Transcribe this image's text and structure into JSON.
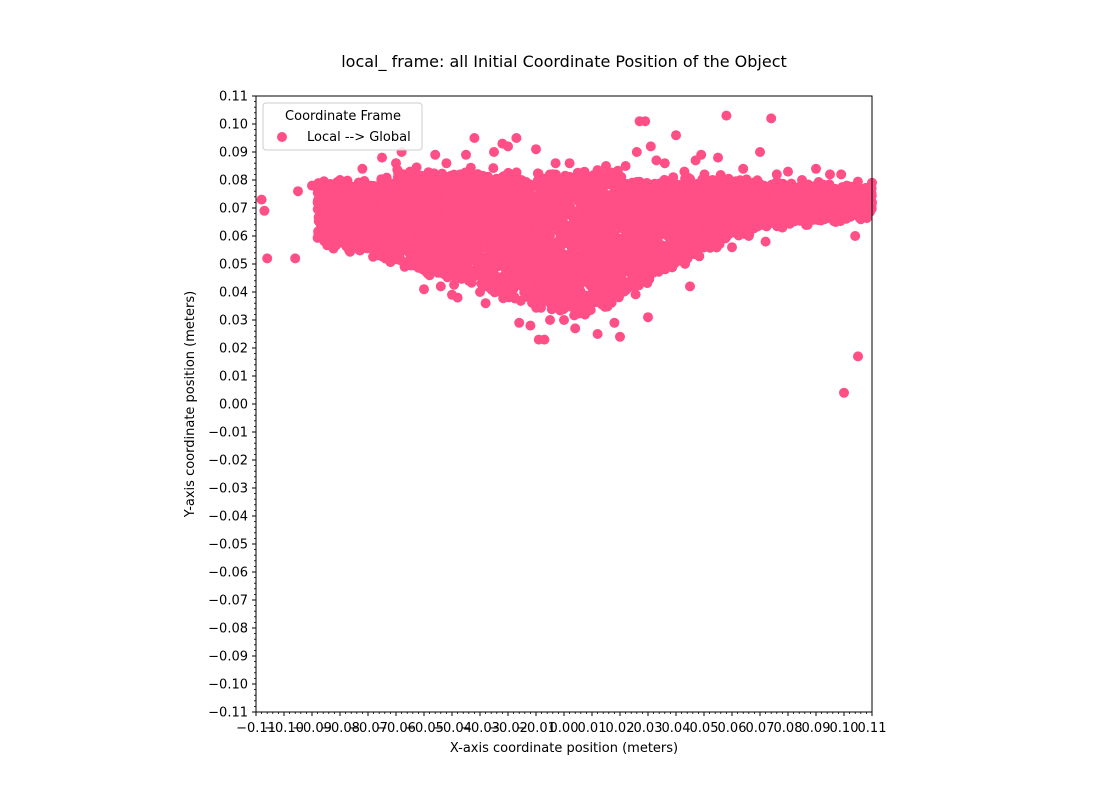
{
  "chart_data": {
    "type": "scatter",
    "title": "local_ frame: all Initial Coordinate Position of the Object",
    "xlabel": "X-axis coordinate position (meters)",
    "ylabel": "Y-axis coordinate position (meters)",
    "xlim": [
      -0.11,
      0.11
    ],
    "ylim": [
      -0.11,
      0.11
    ],
    "x_ticks": [
      "−0.11",
      "−0.10",
      "−0.09",
      "−0.08",
      "−0.07",
      "−0.06",
      "−0.05",
      "−0.04",
      "−0.03",
      "−0.02",
      "−0.01",
      "0.00",
      "0.01",
      "0.02",
      "0.03",
      "0.04",
      "0.05",
      "0.06",
      "0.07",
      "0.08",
      "0.09",
      "0.10",
      "0.11"
    ],
    "y_ticks": [
      "−0.11",
      "−0.10",
      "−0.09",
      "−0.08",
      "−0.07",
      "−0.06",
      "−0.05",
      "−0.04",
      "−0.03",
      "−0.02",
      "−0.01",
      "0.00",
      "0.01",
      "0.02",
      "0.03",
      "0.04",
      "0.05",
      "0.06",
      "0.07",
      "0.08",
      "0.09",
      "0.10",
      "0.11"
    ],
    "grid": false,
    "legend": {
      "title": "Coordinate Frame",
      "placement": "upper-left"
    },
    "series": [
      {
        "name": "Local --> Global",
        "color": "#ff4f86",
        "points": [
          [
            -0.108,
            0.073
          ],
          [
            -0.107,
            0.069
          ],
          [
            -0.106,
            0.052
          ],
          [
            -0.096,
            0.052
          ],
          [
            -0.095,
            0.076
          ],
          [
            -0.09,
            0.078
          ],
          [
            -0.088,
            0.072
          ],
          [
            -0.085,
            0.065
          ],
          [
            -0.082,
            0.066
          ],
          [
            -0.08,
            0.08
          ],
          [
            -0.077,
            0.063
          ],
          [
            -0.075,
            0.058
          ],
          [
            -0.072,
            0.084
          ],
          [
            -0.07,
            0.059
          ],
          [
            -0.068,
            0.055
          ],
          [
            -0.065,
            0.088
          ],
          [
            -0.062,
            0.054
          ],
          [
            -0.06,
            0.086
          ],
          [
            -0.058,
            0.09
          ],
          [
            -0.055,
            0.083
          ],
          [
            -0.052,
            0.053
          ],
          [
            -0.05,
            0.041
          ],
          [
            -0.048,
            0.046
          ],
          [
            -0.046,
            0.089
          ],
          [
            -0.044,
            0.042
          ],
          [
            -0.042,
            0.086
          ],
          [
            -0.04,
            0.039
          ],
          [
            -0.038,
            0.038
          ],
          [
            -0.035,
            0.089
          ],
          [
            -0.032,
            0.095
          ],
          [
            -0.03,
            0.04
          ],
          [
            -0.028,
            0.036
          ],
          [
            -0.025,
            0.09
          ],
          [
            -0.022,
            0.093
          ],
          [
            -0.02,
            0.092
          ],
          [
            -0.017,
            0.095
          ],
          [
            -0.016,
            0.029
          ],
          [
            -0.012,
            0.028
          ],
          [
            -0.01,
            0.091
          ],
          [
            -0.009,
            0.023
          ],
          [
            -0.007,
            0.023
          ],
          [
            -0.005,
            0.03
          ],
          [
            -0.003,
            0.086
          ],
          [
            0.0,
            0.03
          ],
          [
            0.002,
            0.086
          ],
          [
            0.004,
            0.027
          ],
          [
            0.008,
            0.033
          ],
          [
            0.012,
            0.025
          ],
          [
            0.015,
            0.085
          ],
          [
            0.018,
            0.029
          ],
          [
            0.02,
            0.024
          ],
          [
            0.022,
            0.085
          ],
          [
            0.026,
            0.09
          ],
          [
            0.027,
            0.101
          ],
          [
            0.029,
            0.101
          ],
          [
            0.03,
            0.031
          ],
          [
            0.031,
            0.092
          ],
          [
            0.033,
            0.087
          ],
          [
            0.036,
            0.086
          ],
          [
            0.039,
            0.081
          ],
          [
            0.04,
            0.096
          ],
          [
            0.043,
            0.083
          ],
          [
            0.045,
            0.042
          ],
          [
            0.047,
            0.087
          ],
          [
            0.049,
            0.089
          ],
          [
            0.05,
            0.056
          ],
          [
            0.053,
            0.08
          ],
          [
            0.055,
            0.088
          ],
          [
            0.058,
            0.103
          ],
          [
            0.06,
            0.056
          ],
          [
            0.064,
            0.084
          ],
          [
            0.066,
            0.06
          ],
          [
            0.07,
            0.09
          ],
          [
            0.072,
            0.058
          ],
          [
            0.074,
            0.102
          ],
          [
            0.076,
            0.082
          ],
          [
            0.078,
            0.063
          ],
          [
            0.08,
            0.083
          ],
          [
            0.082,
            0.066
          ],
          [
            0.085,
            0.08
          ],
          [
            0.087,
            0.064
          ],
          [
            0.09,
            0.084
          ],
          [
            0.093,
            0.066
          ],
          [
            0.095,
            0.082
          ],
          [
            0.097,
            0.065
          ],
          [
            0.099,
            0.082
          ],
          [
            0.1,
            0.004
          ],
          [
            0.101,
            0.078
          ],
          [
            0.103,
            0.069
          ],
          [
            0.104,
            0.06
          ],
          [
            0.105,
            0.017
          ],
          [
            0.106,
            0.066
          ],
          [
            0.108,
            0.07
          ],
          [
            0.11,
            0.079
          ],
          [
            0.11,
            0.072
          ]
        ]
      }
    ]
  }
}
